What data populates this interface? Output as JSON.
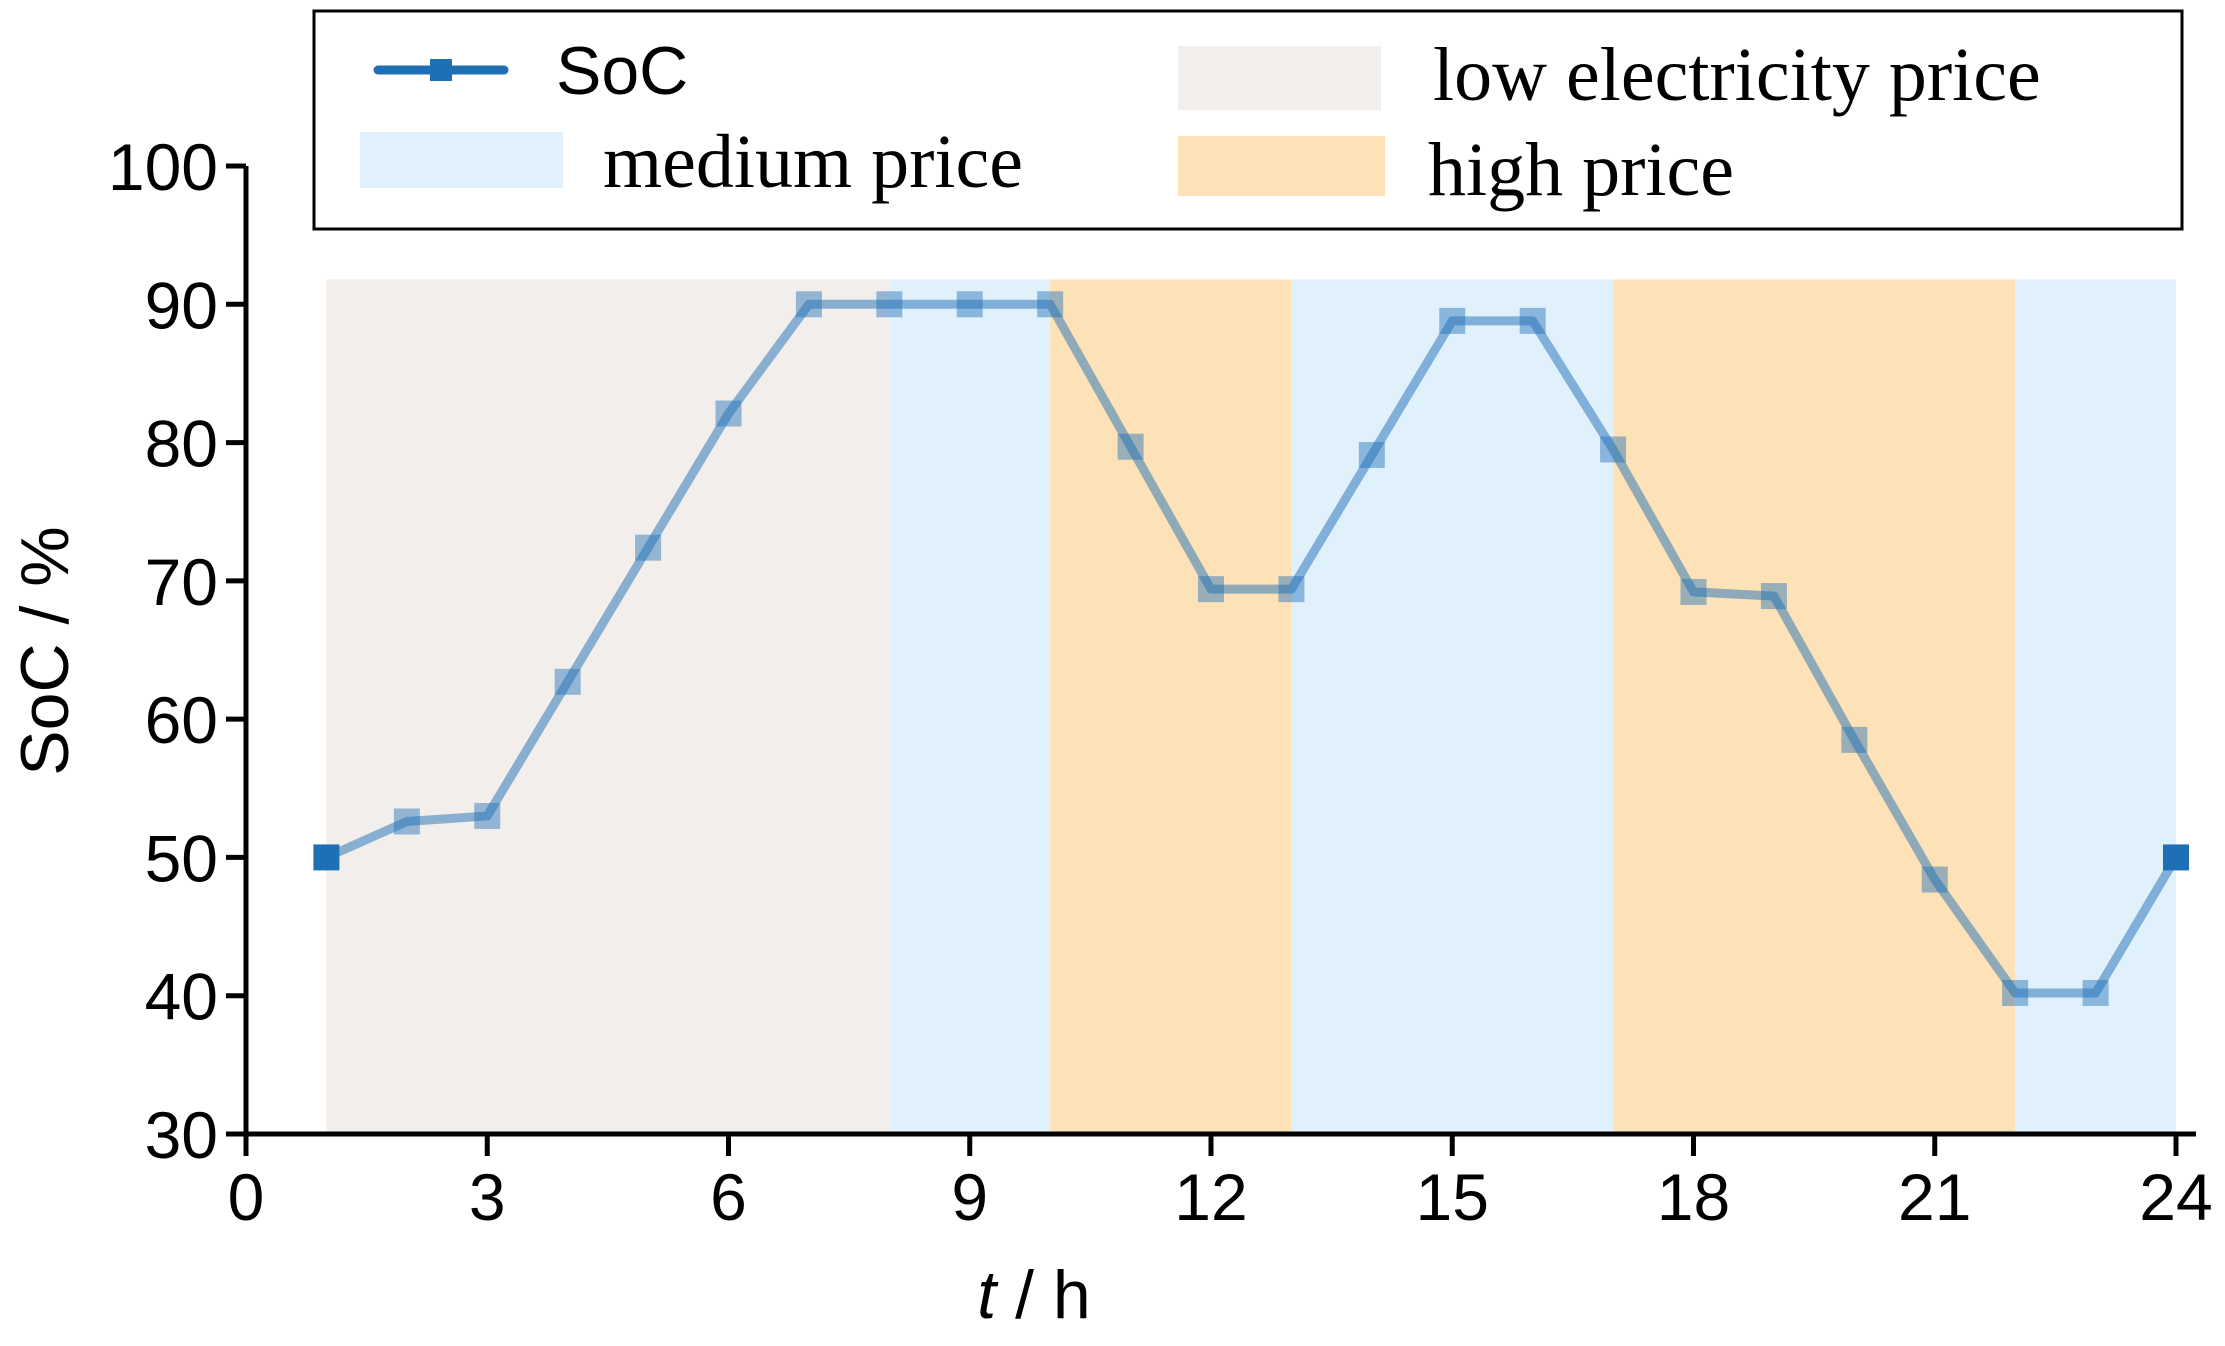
{
  "chart_data": {
    "type": "line",
    "title": "",
    "xlabel_italic": "t",
    "xlabel_rest": " / h",
    "ylabel": "SoC / %",
    "xlim": [
      0,
      24
    ],
    "ylim": [
      30,
      100
    ],
    "xticks": [
      0,
      3,
      6,
      9,
      12,
      15,
      18,
      21,
      24
    ],
    "yticks": [
      30,
      40,
      50,
      60,
      70,
      80,
      90,
      100
    ],
    "series": [
      {
        "name": "SoC",
        "color": "#1f6fb5",
        "x": [
          1,
          2,
          3,
          4,
          5,
          6,
          7,
          8,
          9,
          10,
          11,
          12,
          13,
          14,
          15,
          16,
          17,
          18,
          19,
          20,
          21,
          22,
          23,
          24
        ],
        "values": [
          50,
          52.6,
          53,
          62.7,
          72.4,
          82.1,
          90,
          90,
          90,
          90,
          79.7,
          69.4,
          69.4,
          79.1,
          88.8,
          88.8,
          79.5,
          69.2,
          68.9,
          58.5,
          48.4,
          40.2,
          40.2,
          50
        ]
      }
    ],
    "price_periods": [
      {
        "label": "low electricity price",
        "level": "low",
        "start": 1,
        "end": 8
      },
      {
        "label": "medium price",
        "level": "medium",
        "start": 8,
        "end": 10
      },
      {
        "label": "high price",
        "level": "high",
        "start": 10,
        "end": 13
      },
      {
        "label": "medium price",
        "level": "medium",
        "start": 13,
        "end": 17
      },
      {
        "label": "high price",
        "level": "high",
        "start": 17,
        "end": 22
      },
      {
        "label": "medium price",
        "level": "medium",
        "start": 22,
        "end": 24
      }
    ],
    "band_top_value": 91.8,
    "band_colors": {
      "low": "#f2eeeb",
      "medium": "#e0f1fc",
      "high": "#fde2b8"
    },
    "legend": {
      "placement": "top",
      "entries": [
        {
          "label": "SoC",
          "kind": "line",
          "color": "#1f6fb5"
        },
        {
          "label": "low electricity price",
          "kind": "patch",
          "color": "#f2eeeb"
        },
        {
          "label": "medium price",
          "kind": "patch",
          "color": "#e0f1fc"
        },
        {
          "label": "high price",
          "kind": "patch",
          "color": "#fde2b8"
        }
      ]
    }
  }
}
